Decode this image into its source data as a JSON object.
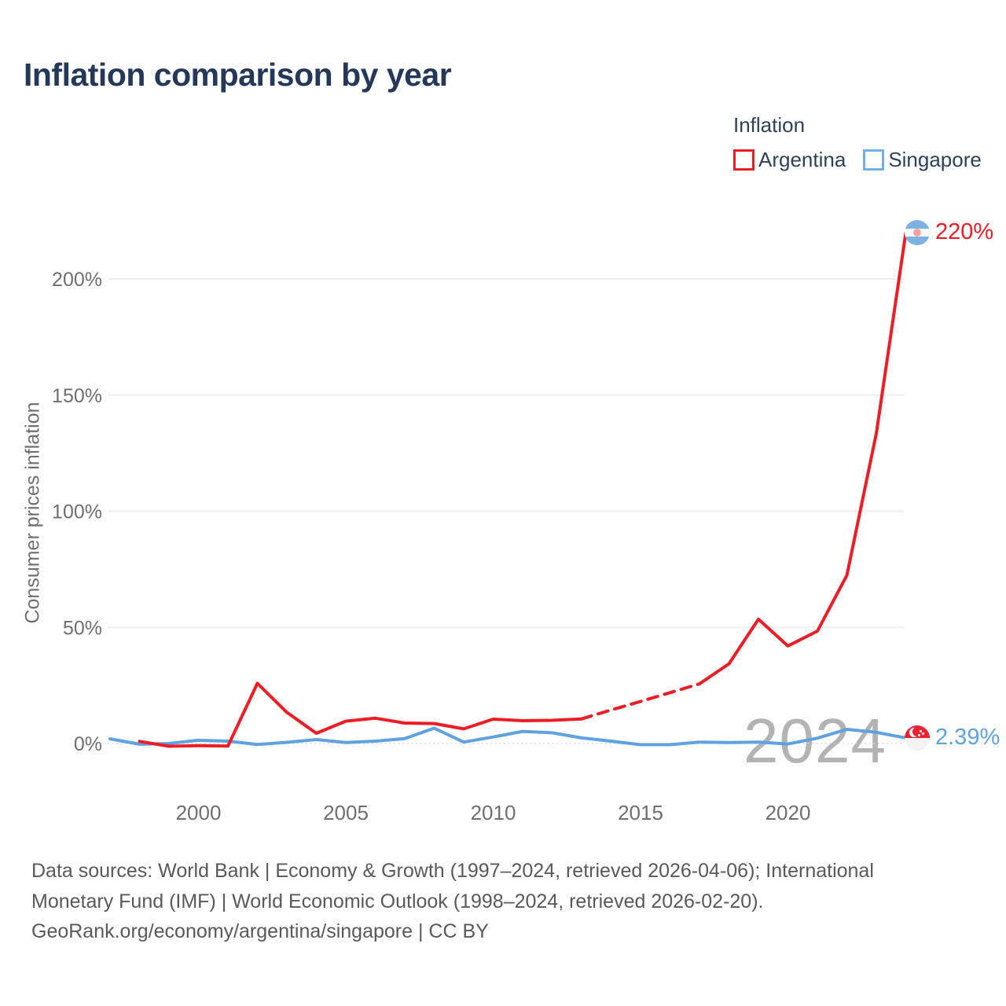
{
  "header": {
    "title": "Inflation comparison by year"
  },
  "legend": {
    "title": "Inflation",
    "entries": [
      {
        "label": "Argentina",
        "color": "#ee1c25"
      },
      {
        "label": "Singapore",
        "color": "#74afe8"
      }
    ]
  },
  "watermark": "2024",
  "footer": {
    "lines": [
      "Data sources: World Bank | Economy & Growth (1997–2024, retrieved 2026-04-06); International",
      "Monetary Fund (IMF) | World Economic Outlook (1998–2024, retrieved 2026-02-20).",
      "GeoRank.org/economy/argentina/singapore | CC BY"
    ]
  },
  "chart_data": {
    "type": "line",
    "title": "Inflation comparison by year",
    "xlabel": "",
    "ylabel": "Consumer prices inflation",
    "legend_title": "Inflation",
    "x_range": [
      1997,
      2024
    ],
    "ylim": [
      -8,
      230
    ],
    "x_ticks": [
      2000,
      2005,
      2010,
      2015,
      2020
    ],
    "y_ticks": [
      0,
      50,
      100,
      150,
      200
    ],
    "y_tick_suffix": "%",
    "grid": "horizontal, zero line dotted",
    "legend_position": "top-right",
    "colors": {
      "grid": "#ededed",
      "zero_line": "#d9d9d9",
      "tick_text": "#6f6f6f"
    },
    "series": [
      {
        "name": "Argentina",
        "color": "#ee1c25",
        "end_label": "220%",
        "end_value": 219.9,
        "flag_icon": "argentina-flag-icon",
        "segments": [
          {
            "style": "solid",
            "points": [
              [
                1998,
                0.9
              ],
              [
                1999,
                -1.2
              ],
              [
                2000,
                -0.9
              ],
              [
                2001,
                -1.1
              ],
              [
                2002,
                25.9
              ],
              [
                2003,
                13.4
              ],
              [
                2004,
                4.4
              ],
              [
                2005,
                9.6
              ],
              [
                2006,
                10.9
              ],
              [
                2007,
                8.8
              ],
              [
                2008,
                8.6
              ],
              [
                2009,
                6.3
              ],
              [
                2010,
                10.5
              ],
              [
                2011,
                9.8
              ],
              [
                2012,
                10.0
              ],
              [
                2013,
                10.6
              ]
            ]
          },
          {
            "style": "dashed",
            "note": "interpolated, no official data 2014-2016",
            "points": [
              [
                2013,
                10.6
              ],
              [
                2014,
                14.4
              ],
              [
                2015,
                18.1
              ],
              [
                2016,
                21.9
              ],
              [
                2017,
                25.7
              ]
            ]
          },
          {
            "style": "solid",
            "points": [
              [
                2017,
                25.7
              ],
              [
                2018,
                34.3
              ],
              [
                2019,
                53.5
              ],
              [
                2020,
                42.0
              ],
              [
                2021,
                48.4
              ],
              [
                2022,
                72.4
              ],
              [
                2023,
                133.5
              ],
              [
                2024,
                219.9
              ]
            ]
          }
        ]
      },
      {
        "name": "Singapore",
        "color": "#5fa2e2",
        "end_label": "2.39%",
        "end_value": 2.39,
        "flag_icon": "singapore-flag-icon",
        "segments": [
          {
            "style": "solid",
            "points": [
              [
                1997,
                2.0
              ],
              [
                1998,
                -0.3
              ],
              [
                1999,
                0.0
              ],
              [
                2000,
                1.4
              ],
              [
                2001,
                1.0
              ],
              [
                2002,
                -0.4
              ],
              [
                2003,
                0.5
              ],
              [
                2004,
                1.7
              ],
              [
                2005,
                0.4
              ],
              [
                2006,
                1.0
              ],
              [
                2007,
                2.1
              ],
              [
                2008,
                6.6
              ],
              [
                2009,
                0.6
              ],
              [
                2010,
                2.8
              ],
              [
                2011,
                5.2
              ],
              [
                2012,
                4.6
              ],
              [
                2013,
                2.4
              ],
              [
                2014,
                1.0
              ],
              [
                2015,
                -0.5
              ],
              [
                2016,
                -0.5
              ],
              [
                2017,
                0.6
              ],
              [
                2018,
                0.4
              ],
              [
                2019,
                0.6
              ],
              [
                2020,
                -0.2
              ],
              [
                2021,
                2.3
              ],
              [
                2022,
                6.1
              ],
              [
                2023,
                4.8
              ],
              [
                2024,
                2.39
              ]
            ]
          }
        ]
      }
    ]
  }
}
